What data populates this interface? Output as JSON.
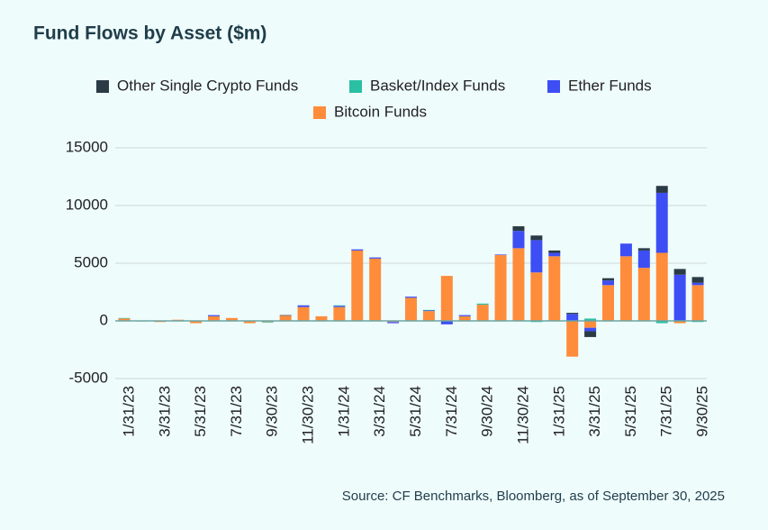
{
  "chart_data": {
    "type": "stacked_bar",
    "title": "Fund Flows by Asset ($m)",
    "source": "Source: CF Benchmarks, Bloomberg, as of September 30, 2025",
    "categories": [
      "1/31/23",
      null,
      "3/31/23",
      null,
      "5/31/23",
      null,
      "7/31/23",
      null,
      "9/30/23",
      null,
      "11/30/23",
      null,
      "1/31/24",
      null,
      "3/31/24",
      null,
      "5/31/24",
      null,
      "7/31/24",
      null,
      "9/30/24",
      null,
      "11/30/24",
      null,
      "1/31/25",
      null,
      "3/31/25",
      null,
      "5/31/25",
      null,
      "7/31/25",
      null,
      "9/30/25"
    ],
    "series": [
      {
        "name": "Other Single Crypto Funds",
        "color": "#2b3b46",
        "values": [
          0,
          0,
          0,
          0,
          0,
          0,
          0,
          0,
          0,
          50,
          0,
          0,
          0,
          0,
          0,
          0,
          0,
          0,
          0,
          0,
          0,
          0,
          400,
          400,
          200,
          100,
          -500,
          200,
          0,
          200,
          600,
          500,
          500
        ]
      },
      {
        "name": "Basket/Index Funds",
        "color": "#2bbfa4",
        "values": [
          50,
          0,
          0,
          0,
          0,
          0,
          0,
          0,
          -50,
          0,
          0,
          0,
          50,
          0,
          0,
          0,
          0,
          50,
          0,
          0,
          100,
          0,
          0,
          -100,
          0,
          0,
          200,
          0,
          0,
          0,
          -200,
          0,
          -100
        ]
      },
      {
        "name": "Ether Funds",
        "color": "#3d4ef5",
        "values": [
          0,
          0,
          0,
          0,
          0,
          100,
          0,
          0,
          0,
          0,
          150,
          0,
          100,
          100,
          100,
          -100,
          100,
          50,
          -300,
          100,
          0,
          50,
          1500,
          2800,
          300,
          600,
          -300,
          400,
          1100,
          1500,
          5200,
          4000,
          200
        ]
      },
      {
        "name": "Bitcoin Funds",
        "color": "#ff8c3a",
        "values": [
          200,
          -50,
          -100,
          100,
          -200,
          400,
          250,
          -200,
          -100,
          450,
          1200,
          400,
          1200,
          6100,
          5400,
          -100,
          2000,
          850,
          3900,
          400,
          1400,
          5700,
          6300,
          4200,
          5600,
          -3100,
          -600,
          3100,
          5600,
          4600,
          5900,
          -200,
          3100
        ]
      }
    ],
    "ylim": [
      -5000,
      15000
    ],
    "yticks": [
      -5000,
      0,
      5000,
      10000,
      15000
    ],
    "grid": true
  }
}
